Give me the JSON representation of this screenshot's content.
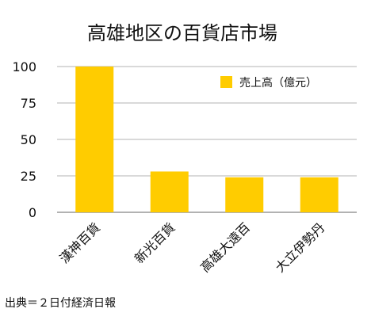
{
  "chart_data": {
    "type": "bar",
    "title": "高雄地区の百貨店市場",
    "categories": [
      "漢神百貨",
      "新光百貨",
      "高雄大遠百",
      "大立伊勢丹"
    ],
    "series": [
      {
        "name": "売上高（億元）",
        "values": [
          100,
          28,
          24,
          24
        ],
        "color": "#FFCC00"
      }
    ],
    "ylim": [
      0,
      100
    ],
    "yticks": [
      0,
      25,
      50,
      75,
      100
    ],
    "xlabel": "",
    "ylabel": "",
    "grid": true,
    "legend": "top-right"
  },
  "source_note": "出典＝２日付経済日報"
}
